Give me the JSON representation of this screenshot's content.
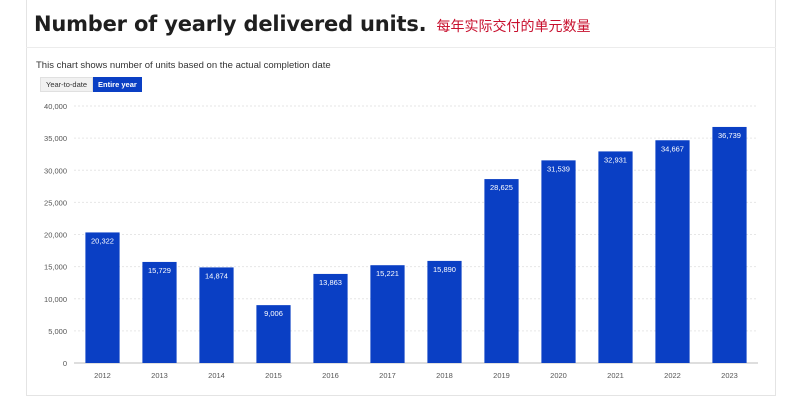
{
  "header": {
    "title": "Number of yearly delivered units.",
    "subtitle_cn": "每年实际交付的单元数量"
  },
  "description": "This chart shows number of units based on the actual completion date",
  "toggle": {
    "options": [
      "Year-to-date",
      "Entire year"
    ],
    "selected": "Entire year"
  },
  "colors": {
    "bar": "#0a3fc4",
    "accent": "#c8102e",
    "grid": "#e6e6e6"
  },
  "chart_data": {
    "type": "bar",
    "categories": [
      "2012",
      "2013",
      "2014",
      "2015",
      "2016",
      "2017",
      "2018",
      "2019",
      "2020",
      "2021",
      "2022",
      "2023"
    ],
    "values": [
      20322,
      15729,
      14874,
      9006,
      13863,
      15221,
      15890,
      28625,
      31539,
      32931,
      34667,
      36739
    ],
    "value_labels": [
      "20,322",
      "15,729",
      "14,874",
      "9,006",
      "13,863",
      "15,221",
      "15,890",
      "28,625",
      "31,539",
      "32,931",
      "34,667",
      "36,739"
    ],
    "yticks": [
      0,
      5000,
      10000,
      15000,
      20000,
      25000,
      30000,
      35000,
      40000
    ],
    "ytick_labels": [
      "0",
      "5,000",
      "10,000",
      "15,000",
      "20,000",
      "25,000",
      "30,000",
      "35,000",
      "40,000"
    ],
    "ylim": [
      0,
      40000
    ],
    "grid": true,
    "legend": "none"
  }
}
